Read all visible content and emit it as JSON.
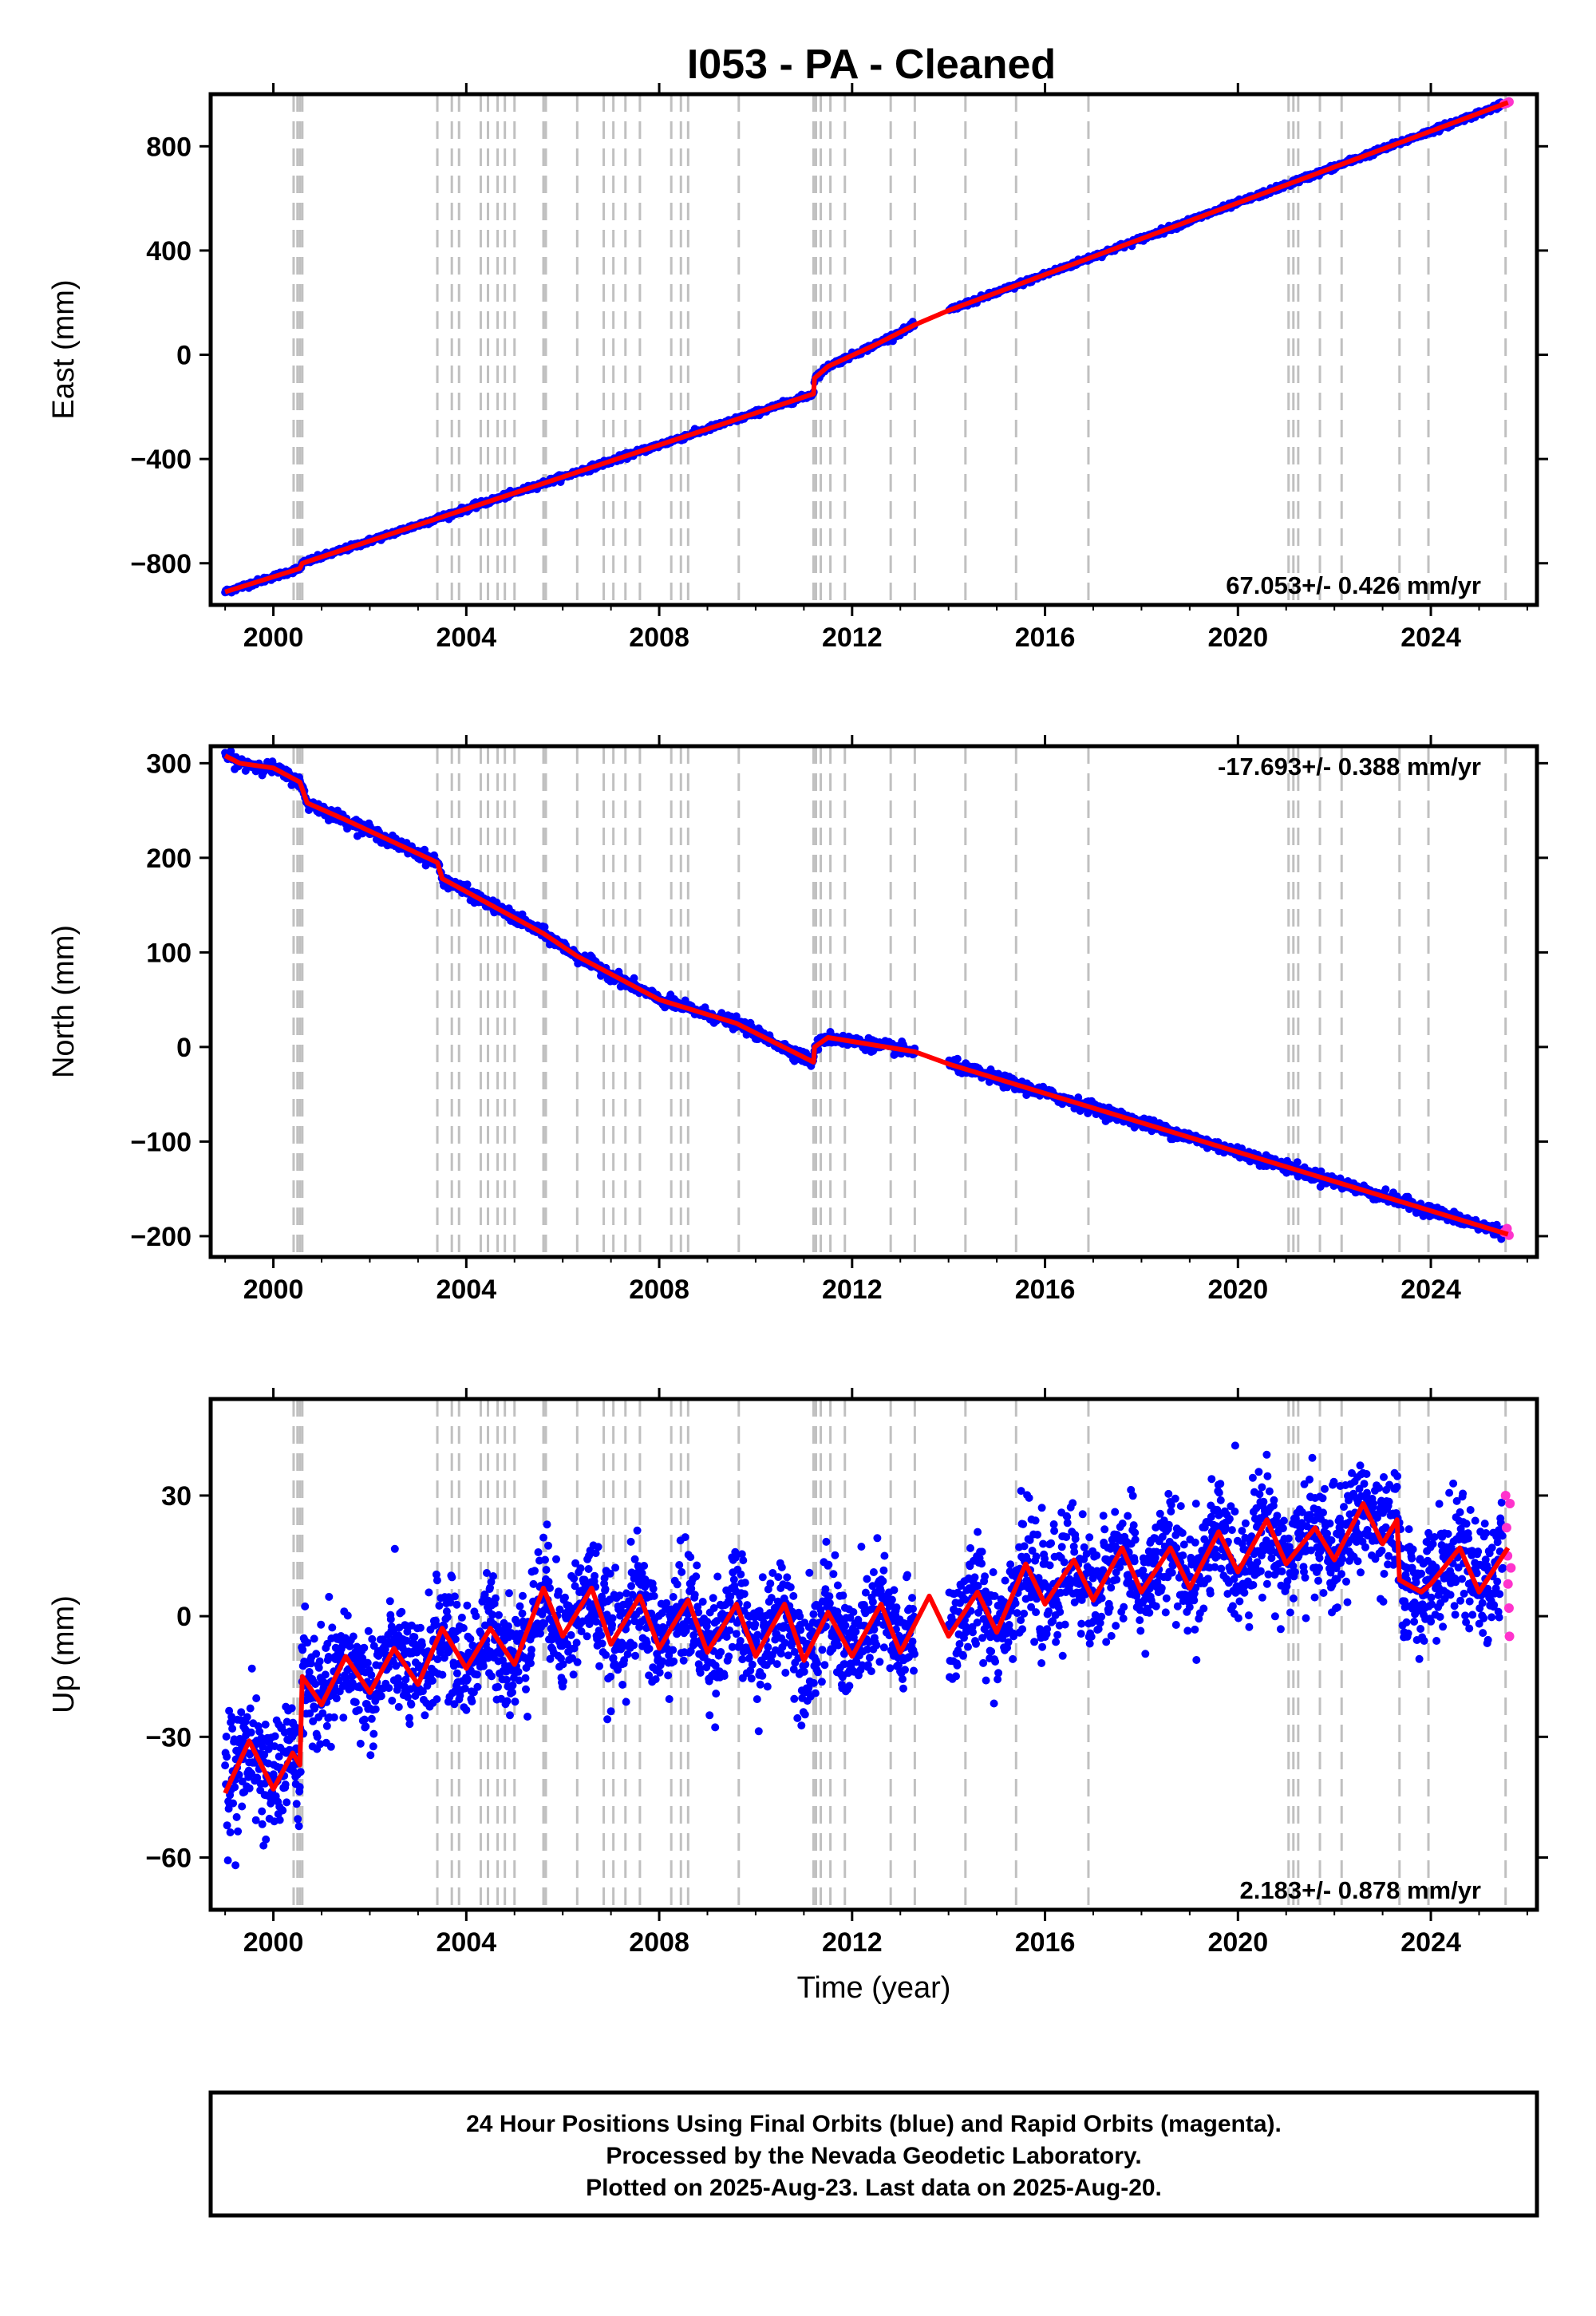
{
  "title": "I053  - PA - Cleaned",
  "colors": {
    "final_orbits": "#0000ff",
    "rapid_orbits": "#ff33cc",
    "model": "#ff0000",
    "event_lines": "#c0c0c0"
  },
  "chart_data": [
    {
      "type": "scatter",
      "panel": "east",
      "ylabel": "East (mm)",
      "xlim": [
        1998.7,
        2026.2
      ],
      "ylim": [
        -960,
        1000
      ],
      "xticks": [
        2000,
        2004,
        2008,
        2012,
        2016,
        2020,
        2024
      ],
      "yticks": [
        -800,
        -400,
        0,
        400,
        800
      ],
      "rate_label": "67.053+/- 0.426 mm/yr",
      "rate_label_position": "bottom-right",
      "model_points": [
        [
          1999.0,
          -910
        ],
        [
          2000.55,
          -820
        ],
        [
          2000.6,
          -800
        ],
        [
          2011.2,
          -150
        ],
        [
          2011.22,
          -90
        ],
        [
          2011.5,
          -45
        ],
        [
          2012.5,
          40
        ],
        [
          2013.3,
          115
        ],
        [
          2014.0,
          170
        ],
        [
          2025.6,
          968
        ]
      ],
      "rapid_points": [
        [
          2025.52,
          962
        ],
        [
          2025.58,
          966
        ],
        [
          2025.62,
          970
        ]
      ]
    },
    {
      "type": "scatter",
      "panel": "north",
      "ylabel": "North (mm)",
      "xlim": [
        1998.7,
        2026.2
      ],
      "ylim": [
        -222,
        318
      ],
      "xticks": [
        2000,
        2004,
        2008,
        2012,
        2016,
        2020,
        2024
      ],
      "yticks": [
        -200,
        -100,
        0,
        100,
        200,
        300
      ],
      "rate_label": "-17.693+/- 0.388 mm/yr",
      "rate_label_position": "top-right",
      "model_points": [
        [
          1999.0,
          308
        ],
        [
          1999.3,
          300
        ],
        [
          2000.0,
          295
        ],
        [
          2000.55,
          280
        ],
        [
          2000.7,
          258
        ],
        [
          2001.5,
          240
        ],
        [
          2003.4,
          195
        ],
        [
          2003.5,
          178
        ],
        [
          2005.6,
          120
        ],
        [
          2006.3,
          96
        ],
        [
          2008.0,
          50
        ],
        [
          2009.6,
          25
        ],
        [
          2011.2,
          -16
        ],
        [
          2011.22,
          0
        ],
        [
          2011.5,
          10
        ],
        [
          2013.3,
          -5
        ],
        [
          2014.0,
          -18
        ],
        [
          2025.6,
          -198
        ]
      ],
      "rapid_points": [
        [
          2025.52,
          -196
        ],
        [
          2025.58,
          -192
        ],
        [
          2025.62,
          -199
        ]
      ]
    },
    {
      "type": "scatter",
      "panel": "up",
      "ylabel": "Up (mm)",
      "xlabel": "Time (year)",
      "xlim": [
        1998.7,
        2026.2
      ],
      "ylim": [
        -73,
        54
      ],
      "xticks": [
        2000,
        2004,
        2008,
        2012,
        2016,
        2020,
        2024
      ],
      "yticks": [
        -60,
        -30,
        0,
        30
      ],
      "rate_label": "2.183+/- 0.878 mm/yr",
      "rate_label_position": "bottom-right",
      "model_points": [
        [
          1999.0,
          -44
        ],
        [
          1999.5,
          -31
        ],
        [
          2000.0,
          -43
        ],
        [
          2000.4,
          -34
        ],
        [
          2000.55,
          -37
        ],
        [
          2000.6,
          -15
        ],
        [
          2001.0,
          -22
        ],
        [
          2001.5,
          -10
        ],
        [
          2002.0,
          -19
        ],
        [
          2002.5,
          -8
        ],
        [
          2003.0,
          -17
        ],
        [
          2003.5,
          -3
        ],
        [
          2004.0,
          -13
        ],
        [
          2004.5,
          -3
        ],
        [
          2005.0,
          -12
        ],
        [
          2005.6,
          7
        ],
        [
          2006.0,
          -5
        ],
        [
          2006.6,
          7
        ],
        [
          2007.0,
          -7
        ],
        [
          2007.6,
          5
        ],
        [
          2008.0,
          -8
        ],
        [
          2008.6,
          4
        ],
        [
          2009.0,
          -9
        ],
        [
          2009.6,
          3
        ],
        [
          2010.0,
          -10
        ],
        [
          2010.6,
          3
        ],
        [
          2011.0,
          -11
        ],
        [
          2011.5,
          1
        ],
        [
          2012.0,
          -10
        ],
        [
          2012.6,
          3
        ],
        [
          2013.0,
          -9
        ],
        [
          2013.6,
          5
        ],
        [
          2014.0,
          -5
        ],
        [
          2014.6,
          6
        ],
        [
          2015.0,
          -4
        ],
        [
          2015.6,
          13
        ],
        [
          2016.0,
          3
        ],
        [
          2016.6,
          14
        ],
        [
          2017.0,
          4
        ],
        [
          2017.6,
          17
        ],
        [
          2018.0,
          6
        ],
        [
          2018.6,
          17
        ],
        [
          2019.0,
          7
        ],
        [
          2019.6,
          21
        ],
        [
          2020.0,
          11
        ],
        [
          2020.6,
          24
        ],
        [
          2021.0,
          13
        ],
        [
          2021.6,
          22
        ],
        [
          2022.0,
          14
        ],
        [
          2022.6,
          28
        ],
        [
          2023.0,
          18
        ],
        [
          2023.3,
          24
        ],
        [
          2023.35,
          9
        ],
        [
          2023.8,
          6
        ],
        [
          2024.0,
          8
        ],
        [
          2024.6,
          17
        ],
        [
          2025.0,
          6
        ],
        [
          2025.6,
          17
        ]
      ],
      "rapid_points": [
        [
          2025.55,
          30
        ],
        [
          2025.57,
          22
        ],
        [
          2025.59,
          15
        ],
        [
          2025.6,
          8
        ],
        [
          2025.62,
          2
        ],
        [
          2025.63,
          -5
        ],
        [
          2025.64,
          28
        ],
        [
          2025.66,
          12
        ]
      ]
    }
  ],
  "event_lines": {
    "years": [
      2000.42,
      2000.5,
      2000.55,
      2000.6,
      2003.4,
      2003.7,
      2003.85,
      2004.3,
      2004.45,
      2004.65,
      2004.8,
      2005.0,
      2005.6,
      2005.65,
      2006.3,
      2006.85,
      2007.05,
      2007.3,
      2007.6,
      2008.25,
      2008.45,
      2008.6,
      2009.65,
      2011.2,
      2011.25,
      2011.35,
      2011.55,
      2011.85,
      2012.8,
      2013.3,
      2014.35,
      2015.4,
      2016.9,
      2021.05,
      2021.15,
      2021.25,
      2021.7,
      2022.15,
      2023.35,
      2023.95,
      2025.55
    ]
  },
  "footer": {
    "line1": "24 Hour Positions Using Final Orbits (blue) and Rapid Orbits (magenta).",
    "line2": "Processed by the Nevada Geodetic Laboratory.",
    "line3": "Plotted on 2025-Aug-23. Last data on 2025-Aug-20."
  }
}
